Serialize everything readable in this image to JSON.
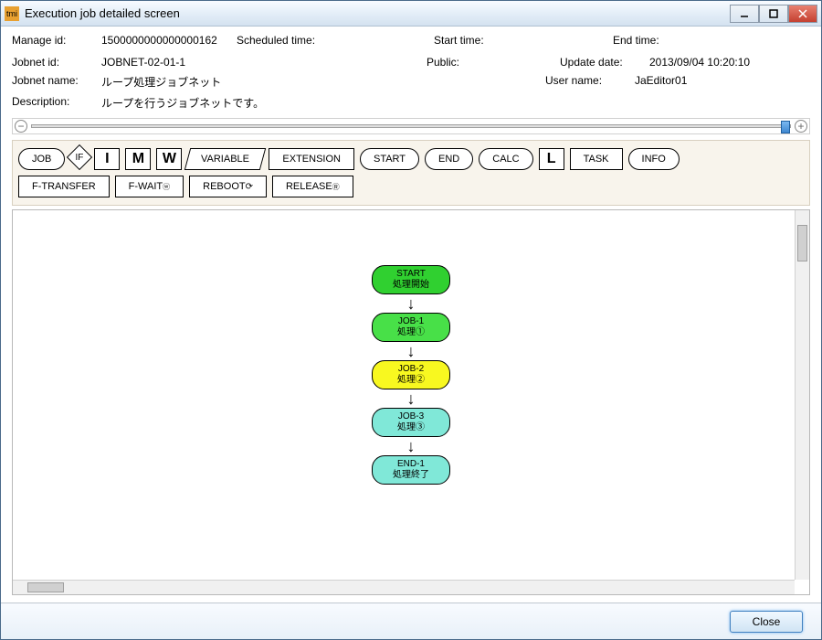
{
  "window": {
    "title": "Execution job detailed screen",
    "icon_text": "tmi"
  },
  "info": {
    "manage_id_label": "Manage id:",
    "manage_id": "1500000000000000162",
    "scheduled_time_label": "Scheduled time:",
    "scheduled_time": "",
    "start_time_label": "Start time:",
    "start_time": "",
    "end_time_label": "End time:",
    "end_time": "",
    "jobnet_id_label": "Jobnet id:",
    "jobnet_id": "JOBNET-02-01-1",
    "public_label": "Public:",
    "public": "",
    "update_date_label": "Update date:",
    "update_date": "2013/09/04 10:20:10",
    "jobnet_name_label": "Jobnet name:",
    "jobnet_name": "ループ処理ジョブネット",
    "user_name_label": "User name:",
    "user_name": "JaEditor01",
    "description_label": "Description:",
    "description": "ループを行うジョブネットです。"
  },
  "toolbox": {
    "row1": {
      "job": "JOB",
      "if": "IF",
      "i": "I",
      "m": "M",
      "w_sq": "W",
      "variable": "VARIABLE",
      "extension": "EXTENSION",
      "start": "START",
      "end": "END",
      "calc": "CALC",
      "l": "L",
      "task": "TASK",
      "info": "INFO"
    },
    "row2": {
      "ftransfer": "F-TRANSFER",
      "fwait": "F-WAIT",
      "reboot": "REBOOT",
      "release": "RELEASE"
    }
  },
  "flow": {
    "nodes": [
      {
        "id": "start",
        "title": "START",
        "sub": "処理開始",
        "color": "green"
      },
      {
        "id": "job1",
        "title": "JOB-1",
        "sub": "処理①",
        "color": "brightgreen"
      },
      {
        "id": "job2",
        "title": "JOB-2",
        "sub": "処理②",
        "color": "yellow"
      },
      {
        "id": "job3",
        "title": "JOB-3",
        "sub": "処理③",
        "color": "cyan"
      },
      {
        "id": "end1",
        "title": "END-1",
        "sub": "処理終了",
        "color": "cyan"
      }
    ]
  },
  "footer": {
    "close": "Close"
  },
  "colors": {
    "green": "#30d030",
    "brightgreen": "#48e048",
    "yellow": "#f8f820",
    "cyan": "#80e8d8"
  }
}
